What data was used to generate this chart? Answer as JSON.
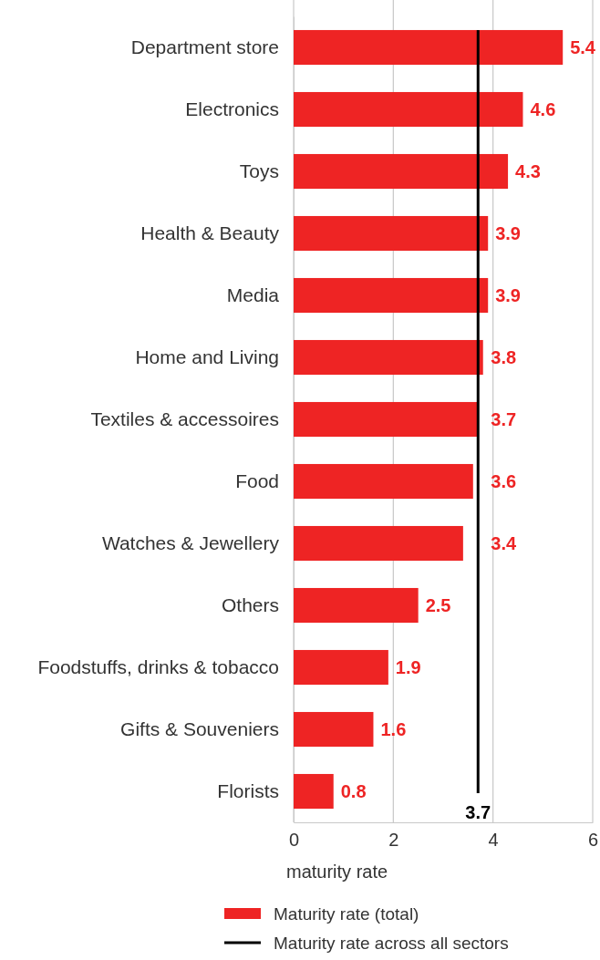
{
  "chart_data": {
    "type": "bar",
    "orientation": "horizontal",
    "xlabel": "maturity rate",
    "categories": [
      "Department store",
      "Electronics",
      "Toys",
      "Health & Beauty",
      "Media",
      "Home and Living",
      "Textiles & accessoires",
      "Food",
      "Watches & Jewellery",
      "Others",
      "Foodstuffs, drinks & tobacco",
      "Gifts & Souveniers",
      "Florists"
    ],
    "series": [
      {
        "name": "Maturity rate (total)",
        "color": "#ee2424",
        "values": [
          5.4,
          4.6,
          4.3,
          3.9,
          3.9,
          3.8,
          3.7,
          3.6,
          3.4,
          2.5,
          1.9,
          1.6,
          0.8
        ]
      }
    ],
    "xlim": [
      0,
      6
    ],
    "xticks": [
      0,
      2,
      4,
      6
    ],
    "grid": "x",
    "data_labels": true,
    "legend": "bottom",
    "ref_lines": [
      {
        "axis": "x",
        "value": 3.7,
        "label": "Maturity rate across all sectors",
        "color": "#000000"
      }
    ],
    "annotations": [
      "3.7"
    ]
  }
}
